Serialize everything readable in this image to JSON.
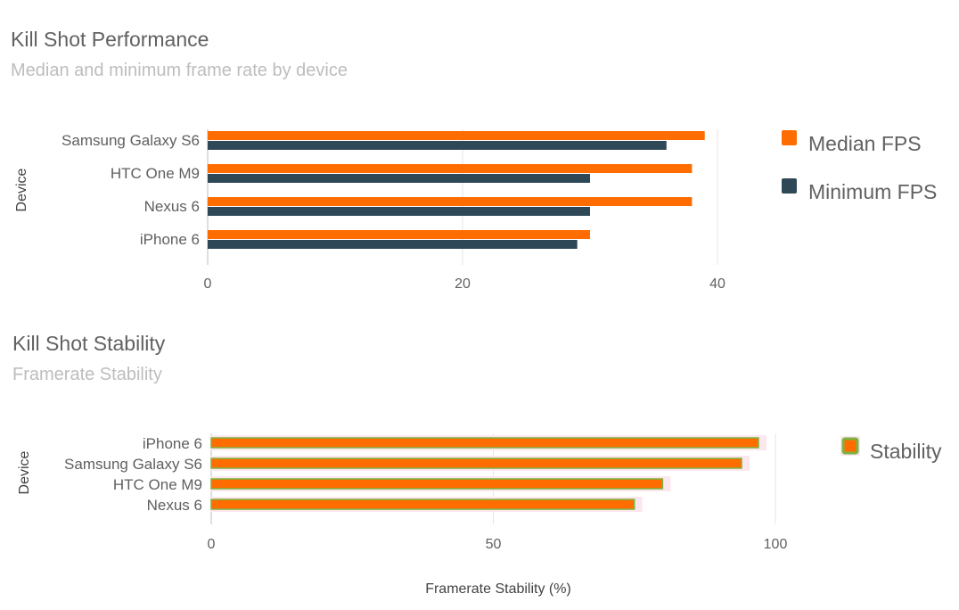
{
  "chart_data": [
    {
      "type": "bar",
      "orientation": "horizontal",
      "title": "Kill Shot Performance",
      "subtitle": "Median and minimum frame rate by device",
      "xlabel": "",
      "ylabel": "Device",
      "categories": [
        "Samsung Galaxy S6",
        "HTC One M9",
        "Nexus 6",
        "iPhone 6"
      ],
      "series": [
        {
          "name": "Median FPS",
          "color": "#ff6d00",
          "values": [
            39,
            38,
            38,
            30
          ]
        },
        {
          "name": "Minimum FPS",
          "color": "#2f4858",
          "values": [
            36,
            30,
            30,
            29
          ]
        }
      ],
      "xlim": [
        0,
        40
      ],
      "xticks": [
        "0",
        "20",
        "40"
      ],
      "grid": true,
      "legend": "right"
    },
    {
      "type": "bar",
      "orientation": "horizontal",
      "title": "Kill Shot Stability",
      "subtitle": "Framerate Stability",
      "xlabel": "Framerate Stability (%)",
      "ylabel": "Device",
      "categories": [
        "iPhone 6",
        "Samsung Galaxy S6",
        "HTC One M9",
        "Nexus 6"
      ],
      "series": [
        {
          "name": "Stability",
          "color": "#ff6d00",
          "border": "#7cb342",
          "values": [
            97,
            94,
            80,
            75
          ]
        }
      ],
      "xlim": [
        0,
        100
      ],
      "xticks": [
        "0",
        "50",
        "100"
      ],
      "grid": true,
      "legend": "right"
    }
  ]
}
